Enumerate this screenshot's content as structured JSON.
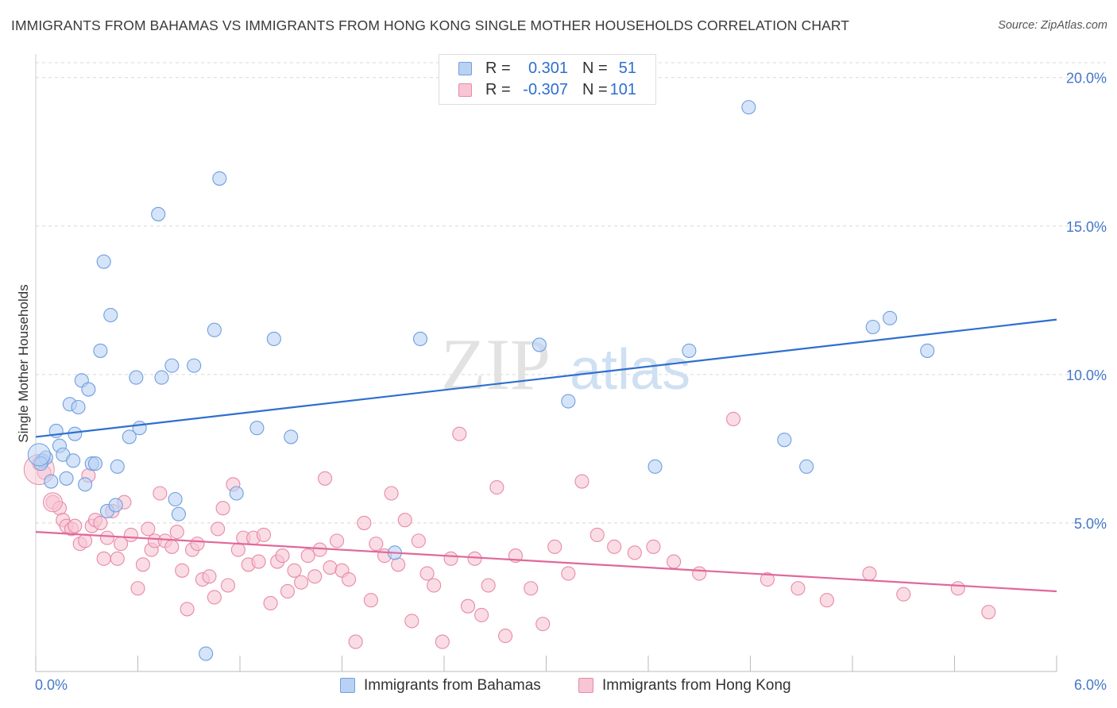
{
  "title": "IMMIGRANTS FROM BAHAMAS VS IMMIGRANTS FROM HONG KONG SINGLE MOTHER HOUSEHOLDS CORRELATION CHART",
  "source": "Source: ZipAtlas.com",
  "watermark": "ZIPatlas",
  "legend_top": {
    "rows": [
      {
        "r_label": "R =",
        "r_value": "0.301",
        "n_label": "N =",
        "n_value": "51"
      },
      {
        "r_label": "R =",
        "r_value": "-0.307",
        "n_label": "N =",
        "n_value": "101"
      }
    ]
  },
  "legend_bottom": {
    "items": [
      {
        "label": "Immigrants from Bahamas"
      },
      {
        "label": "Immigrants from Hong Kong"
      }
    ]
  },
  "colors": {
    "bahamas_fill": "#b9d2f3",
    "bahamas_stroke": "#6f9fe0",
    "bahamas_line": "#2f6fce",
    "hongkong_fill": "#f7c5d4",
    "hongkong_stroke": "#e88aa8",
    "hongkong_line": "#e0689a",
    "axis_label": "#4477c8",
    "grid": "#d8d8d8"
  },
  "chart_data": {
    "type": "scatter",
    "title": "IMMIGRANTS FROM BAHAMAS VS IMMIGRANTS FROM HONG KONG SINGLE MOTHER HOUSEHOLDS CORRELATION CHART",
    "xlabel": "",
    "ylabel": "Single Mother Households",
    "xlim": [
      0,
      6.0
    ],
    "ylim": [
      0,
      20.5
    ],
    "x_tick_labels": [
      "0.0%",
      "6.0%"
    ],
    "y_ticks": [
      5,
      10,
      15,
      20
    ],
    "y_tick_labels": [
      "5.0%",
      "10.0%",
      "15.0%",
      "20.0%"
    ],
    "grid": "horizontal dashed",
    "legend_position": "top-center and bottom",
    "series": [
      {
        "name": "Immigrants from Bahamas",
        "r": 0.301,
        "n": 51,
        "trend": {
          "x0": 0,
          "y0": 7.9,
          "x1": 6.0,
          "y1": 11.85
        },
        "points": [
          [
            0.04,
            7.1
          ],
          [
            0.06,
            7.2
          ],
          [
            0.09,
            6.4
          ],
          [
            0.12,
            8.1
          ],
          [
            0.14,
            7.6
          ],
          [
            0.16,
            7.3
          ],
          [
            0.18,
            6.5
          ],
          [
            0.2,
            9.0
          ],
          [
            0.22,
            7.1
          ],
          [
            0.23,
            8.0
          ],
          [
            0.25,
            8.9
          ],
          [
            0.27,
            9.8
          ],
          [
            0.29,
            6.3
          ],
          [
            0.31,
            9.5
          ],
          [
            0.33,
            7.0
          ],
          [
            0.35,
            7.0
          ],
          [
            0.38,
            10.8
          ],
          [
            0.4,
            13.8
          ],
          [
            0.42,
            5.4
          ],
          [
            0.44,
            12.0
          ],
          [
            0.47,
            5.6
          ],
          [
            0.48,
            6.9
          ],
          [
            0.55,
            7.9
          ],
          [
            0.59,
            9.9
          ],
          [
            0.61,
            8.2
          ],
          [
            0.72,
            15.4
          ],
          [
            0.74,
            9.9
          ],
          [
            0.8,
            10.3
          ],
          [
            0.82,
            5.8
          ],
          [
            0.84,
            5.3
          ],
          [
            0.93,
            10.3
          ],
          [
            1.0,
            0.6
          ],
          [
            1.05,
            11.5
          ],
          [
            1.08,
            16.6
          ],
          [
            1.18,
            6.0
          ],
          [
            1.3,
            8.2
          ],
          [
            1.4,
            11.2
          ],
          [
            1.5,
            7.9
          ],
          [
            2.11,
            4.0
          ],
          [
            2.26,
            11.2
          ],
          [
            2.96,
            11.0
          ],
          [
            3.13,
            9.1
          ],
          [
            3.64,
            6.9
          ],
          [
            3.84,
            10.8
          ],
          [
            4.19,
            19.0
          ],
          [
            4.4,
            7.8
          ],
          [
            4.53,
            6.9
          ],
          [
            4.92,
            11.6
          ],
          [
            5.02,
            11.9
          ],
          [
            5.24,
            10.8
          ],
          [
            0.03,
            7.0
          ]
        ]
      },
      {
        "name": "Immigrants from Hong Kong",
        "r": -0.307,
        "n": 101,
        "trend": {
          "x0": 0,
          "y0": 4.7,
          "x1": 6.0,
          "y1": 2.7
        },
        "points": [
          [
            0.02,
            7.0
          ],
          [
            0.05,
            6.7
          ],
          [
            0.1,
            5.7
          ],
          [
            0.14,
            5.5
          ],
          [
            0.16,
            5.1
          ],
          [
            0.18,
            4.9
          ],
          [
            0.21,
            4.8
          ],
          [
            0.23,
            4.9
          ],
          [
            0.26,
            4.3
          ],
          [
            0.29,
            4.4
          ],
          [
            0.31,
            6.6
          ],
          [
            0.33,
            4.9
          ],
          [
            0.35,
            5.1
          ],
          [
            0.38,
            5.0
          ],
          [
            0.4,
            3.8
          ],
          [
            0.42,
            4.5
          ],
          [
            0.45,
            5.4
          ],
          [
            0.48,
            3.8
          ],
          [
            0.5,
            4.3
          ],
          [
            0.52,
            5.7
          ],
          [
            0.56,
            4.6
          ],
          [
            0.6,
            2.8
          ],
          [
            0.63,
            3.6
          ],
          [
            0.66,
            4.8
          ],
          [
            0.68,
            4.1
          ],
          [
            0.7,
            4.4
          ],
          [
            0.73,
            6.0
          ],
          [
            0.76,
            4.4
          ],
          [
            0.8,
            4.2
          ],
          [
            0.83,
            4.7
          ],
          [
            0.86,
            3.4
          ],
          [
            0.89,
            2.1
          ],
          [
            0.92,
            4.1
          ],
          [
            0.95,
            4.3
          ],
          [
            0.98,
            3.1
          ],
          [
            1.02,
            3.2
          ],
          [
            1.05,
            2.5
          ],
          [
            1.07,
            4.8
          ],
          [
            1.1,
            5.5
          ],
          [
            1.13,
            2.9
          ],
          [
            1.16,
            6.3
          ],
          [
            1.19,
            4.1
          ],
          [
            1.22,
            4.5
          ],
          [
            1.25,
            3.6
          ],
          [
            1.28,
            4.5
          ],
          [
            1.31,
            3.7
          ],
          [
            1.34,
            4.6
          ],
          [
            1.38,
            2.3
          ],
          [
            1.42,
            3.7
          ],
          [
            1.45,
            3.9
          ],
          [
            1.48,
            2.7
          ],
          [
            1.52,
            3.4
          ],
          [
            1.56,
            3.0
          ],
          [
            1.6,
            3.9
          ],
          [
            1.64,
            3.2
          ],
          [
            1.67,
            4.1
          ],
          [
            1.7,
            6.5
          ],
          [
            1.73,
            3.5
          ],
          [
            1.77,
            4.4
          ],
          [
            1.8,
            3.4
          ],
          [
            1.84,
            3.1
          ],
          [
            1.88,
            1.0
          ],
          [
            1.93,
            5.0
          ],
          [
            1.97,
            2.4
          ],
          [
            2.0,
            4.3
          ],
          [
            2.05,
            3.9
          ],
          [
            2.09,
            6.0
          ],
          [
            2.13,
            3.6
          ],
          [
            2.17,
            5.1
          ],
          [
            2.21,
            1.7
          ],
          [
            2.25,
            4.4
          ],
          [
            2.3,
            3.3
          ],
          [
            2.34,
            2.9
          ],
          [
            2.39,
            1.0
          ],
          [
            2.44,
            3.8
          ],
          [
            2.49,
            8.0
          ],
          [
            2.54,
            2.2
          ],
          [
            2.58,
            3.8
          ],
          [
            2.62,
            1.9
          ],
          [
            2.66,
            2.9
          ],
          [
            2.71,
            6.2
          ],
          [
            2.76,
            1.2
          ],
          [
            2.82,
            3.9
          ],
          [
            2.91,
            2.8
          ],
          [
            2.98,
            1.6
          ],
          [
            3.05,
            4.2
          ],
          [
            3.13,
            3.3
          ],
          [
            3.21,
            6.4
          ],
          [
            3.3,
            4.6
          ],
          [
            3.4,
            4.2
          ],
          [
            3.52,
            4.0
          ],
          [
            3.63,
            4.2
          ],
          [
            3.75,
            3.7
          ],
          [
            3.9,
            3.3
          ],
          [
            4.1,
            8.5
          ],
          [
            4.3,
            3.1
          ],
          [
            4.48,
            2.8
          ],
          [
            4.65,
            2.4
          ],
          [
            4.9,
            3.3
          ],
          [
            5.1,
            2.6
          ],
          [
            5.42,
            2.8
          ],
          [
            5.6,
            2.0
          ]
        ]
      }
    ]
  }
}
